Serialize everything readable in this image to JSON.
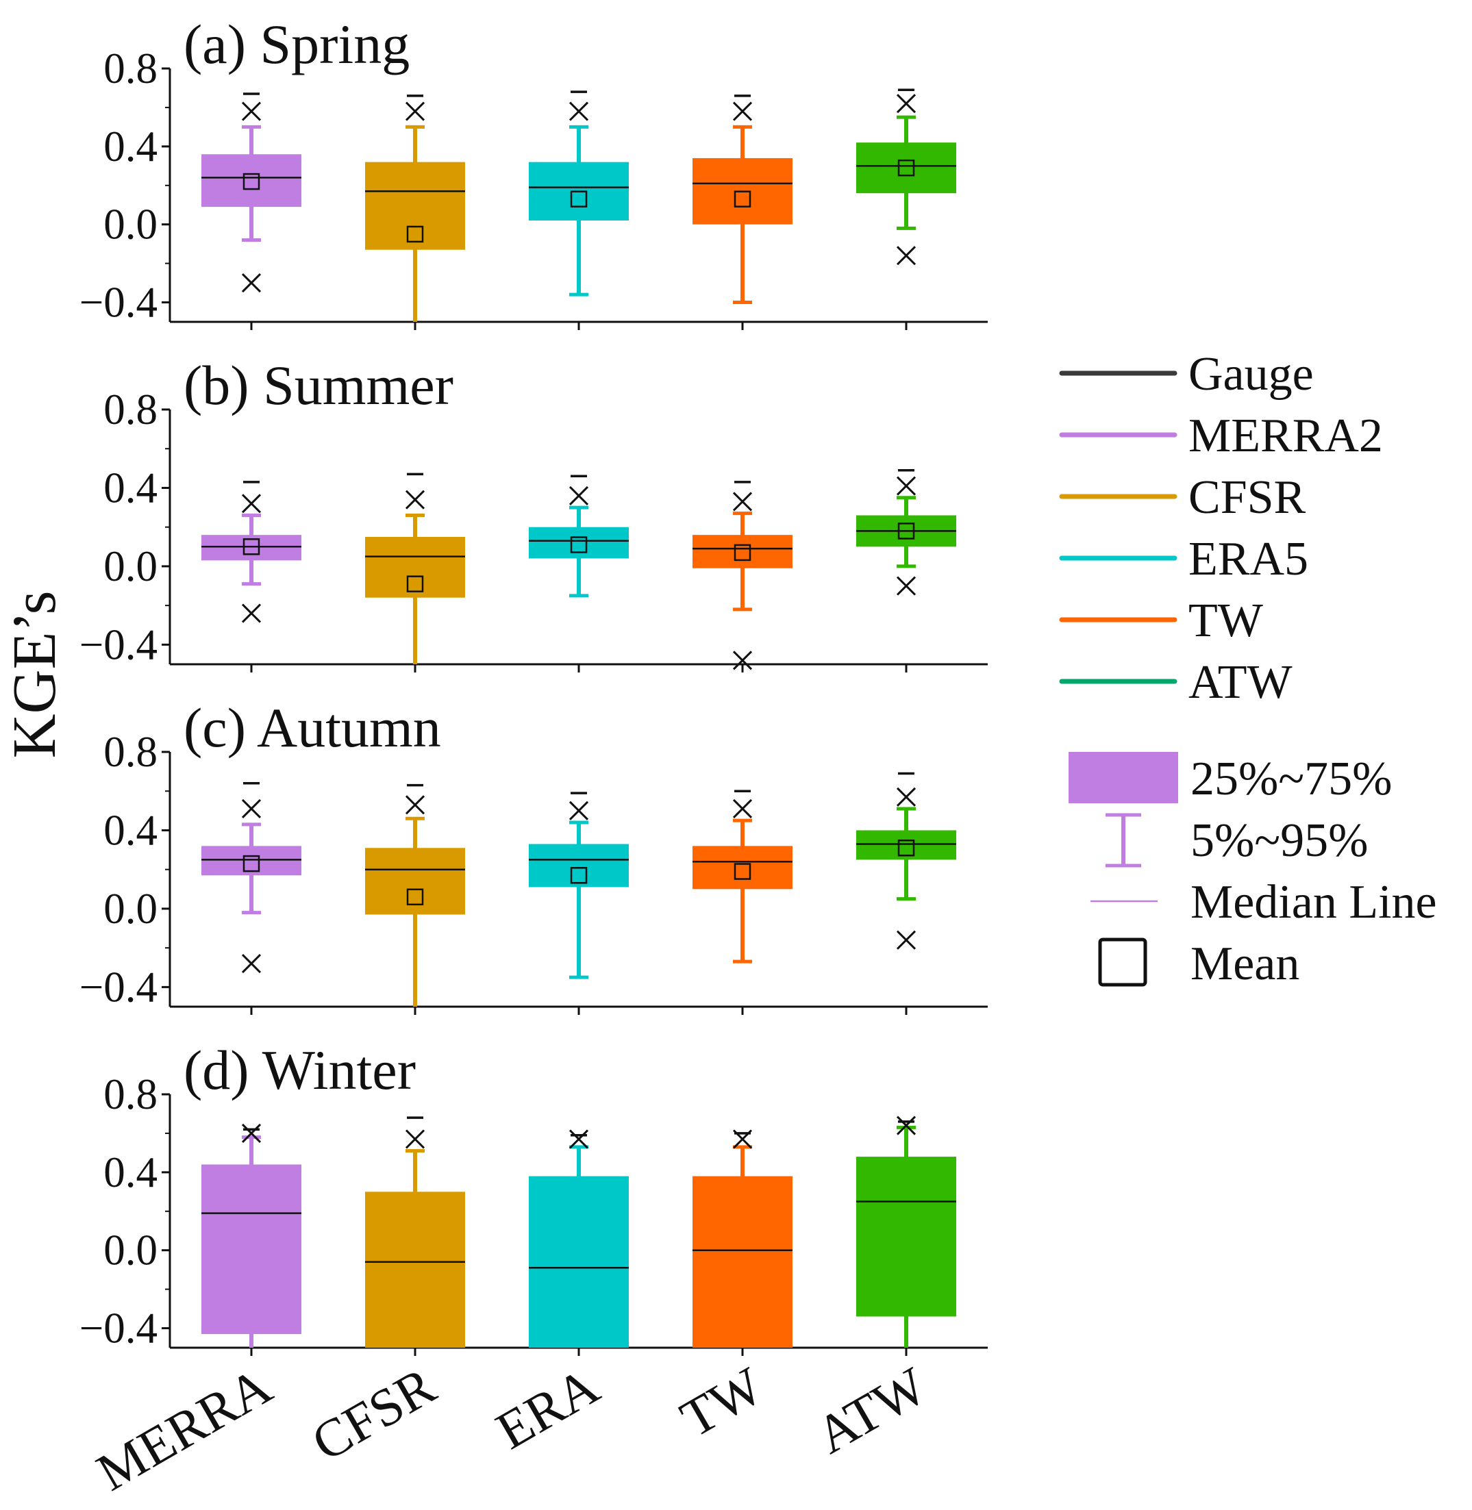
{
  "chart_data": {
    "type": "box",
    "ylabel": "KGE’s",
    "ylim": [
      -0.5,
      0.8
    ],
    "yticks": [
      {
        "value": -0.4,
        "label": "−0.4"
      },
      {
        "value": 0.0,
        "label": "0.0"
      },
      {
        "value": 0.4,
        "label": "0.4"
      },
      {
        "value": 0.8,
        "label": "0.8"
      }
    ],
    "categories": [
      "MERRA",
      "CFSR",
      "ERA",
      "TW",
      "ATW"
    ],
    "colors": [
      "#c07ee3",
      "#d99a00",
      "#00c8c8",
      "#ff6600",
      "#33b800"
    ],
    "panels": [
      {
        "title": "(a) Spring",
        "boxes": [
          {
            "q1": 0.09,
            "median": 0.24,
            "q3": 0.36,
            "p5": -0.08,
            "p95": 0.5,
            "mean": 0.22,
            "min": -0.3,
            "max": 0.58,
            "cap": 0.67
          },
          {
            "q1": -0.13,
            "median": 0.17,
            "q3": 0.32,
            "p5": -0.5,
            "p95": 0.5,
            "mean": -0.05,
            "min": null,
            "max": 0.58,
            "cap": 0.66
          },
          {
            "q1": 0.02,
            "median": 0.19,
            "q3": 0.32,
            "p5": -0.36,
            "p95": 0.5,
            "mean": 0.13,
            "min": null,
            "max": 0.58,
            "cap": 0.68
          },
          {
            "q1": 0.0,
            "median": 0.21,
            "q3": 0.34,
            "p5": -0.4,
            "p95": 0.5,
            "mean": 0.13,
            "min": null,
            "max": 0.58,
            "cap": 0.66
          },
          {
            "q1": 0.16,
            "median": 0.3,
            "q3": 0.42,
            "p5": -0.02,
            "p95": 0.55,
            "mean": 0.29,
            "min": -0.16,
            "max": 0.62,
            "cap": 0.69
          }
        ]
      },
      {
        "title": "(b) Summer",
        "boxes": [
          {
            "q1": 0.03,
            "median": 0.1,
            "q3": 0.16,
            "p5": -0.09,
            "p95": 0.26,
            "mean": 0.1,
            "min": -0.24,
            "max": 0.32,
            "cap": 0.43
          },
          {
            "q1": -0.16,
            "median": 0.05,
            "q3": 0.15,
            "p5": -0.5,
            "p95": 0.26,
            "mean": -0.09,
            "min": null,
            "max": 0.34,
            "cap": 0.47
          },
          {
            "q1": 0.04,
            "median": 0.13,
            "q3": 0.2,
            "p5": -0.15,
            "p95": 0.3,
            "mean": 0.11,
            "min": null,
            "max": 0.36,
            "cap": 0.46
          },
          {
            "q1": -0.01,
            "median": 0.09,
            "q3": 0.16,
            "p5": -0.22,
            "p95": 0.27,
            "mean": 0.07,
            "min": -0.48,
            "max": 0.33,
            "cap": 0.43
          },
          {
            "q1": 0.1,
            "median": 0.18,
            "q3": 0.26,
            "p5": 0.0,
            "p95": 0.35,
            "mean": 0.18,
            "min": -0.1,
            "max": 0.41,
            "cap": 0.49
          }
        ]
      },
      {
        "title": "(c) Autumn",
        "boxes": [
          {
            "q1": 0.17,
            "median": 0.25,
            "q3": 0.32,
            "p5": -0.02,
            "p95": 0.43,
            "mean": 0.23,
            "min": -0.28,
            "max": 0.51,
            "cap": 0.64
          },
          {
            "q1": -0.03,
            "median": 0.2,
            "q3": 0.31,
            "p5": -0.5,
            "p95": 0.46,
            "mean": 0.06,
            "min": null,
            "max": 0.53,
            "cap": 0.63
          },
          {
            "q1": 0.11,
            "median": 0.25,
            "q3": 0.33,
            "p5": -0.35,
            "p95": 0.44,
            "mean": 0.17,
            "min": null,
            "max": 0.5,
            "cap": 0.59
          },
          {
            "q1": 0.1,
            "median": 0.24,
            "q3": 0.32,
            "p5": -0.27,
            "p95": 0.45,
            "mean": 0.19,
            "min": null,
            "max": 0.51,
            "cap": 0.6
          },
          {
            "q1": 0.25,
            "median": 0.33,
            "q3": 0.4,
            "p5": 0.05,
            "p95": 0.51,
            "mean": 0.31,
            "min": -0.16,
            "max": 0.57,
            "cap": 0.69
          }
        ]
      },
      {
        "title": "(d) Winter",
        "boxes": [
          {
            "q1": -0.43,
            "median": 0.19,
            "q3": 0.44,
            "p5": -0.5,
            "p95": 0.58,
            "mean": null,
            "min": null,
            "max": 0.6,
            "cap": 0.62
          },
          {
            "q1": -0.5,
            "median": -0.06,
            "q3": 0.3,
            "p5": -0.5,
            "p95": 0.51,
            "mean": null,
            "min": null,
            "max": 0.57,
            "cap": 0.68
          },
          {
            "q1": -0.5,
            "median": -0.09,
            "q3": 0.38,
            "p5": -0.5,
            "p95": 0.53,
            "mean": null,
            "min": null,
            "max": 0.57,
            "cap": 0.59
          },
          {
            "q1": -0.5,
            "median": 0.0,
            "q3": 0.38,
            "p5": -0.5,
            "p95": 0.53,
            "mean": null,
            "min": null,
            "max": 0.57,
            "cap": 0.6
          },
          {
            "q1": -0.34,
            "median": 0.25,
            "q3": 0.48,
            "p5": -0.5,
            "p95": 0.63,
            "mean": null,
            "min": null,
            "max": 0.64,
            "cap": 0.66
          }
        ]
      }
    ],
    "legend": {
      "series": [
        {
          "label": "Gauge",
          "color": "#3a3a3a"
        },
        {
          "label": "MERRA2",
          "color": "#c07ee3"
        },
        {
          "label": "CFSR",
          "color": "#d99a00"
        },
        {
          "label": "ERA5",
          "color": "#00c8c8"
        },
        {
          "label": "TW",
          "color": "#ff6600"
        },
        {
          "label": "ATW",
          "color": "#00a86b"
        }
      ],
      "box_label": "25%~75%",
      "whisker_label": "5%~95%",
      "median_label": "Median Line",
      "mean_label": "Mean",
      "key_color": "#c07ee3"
    }
  }
}
